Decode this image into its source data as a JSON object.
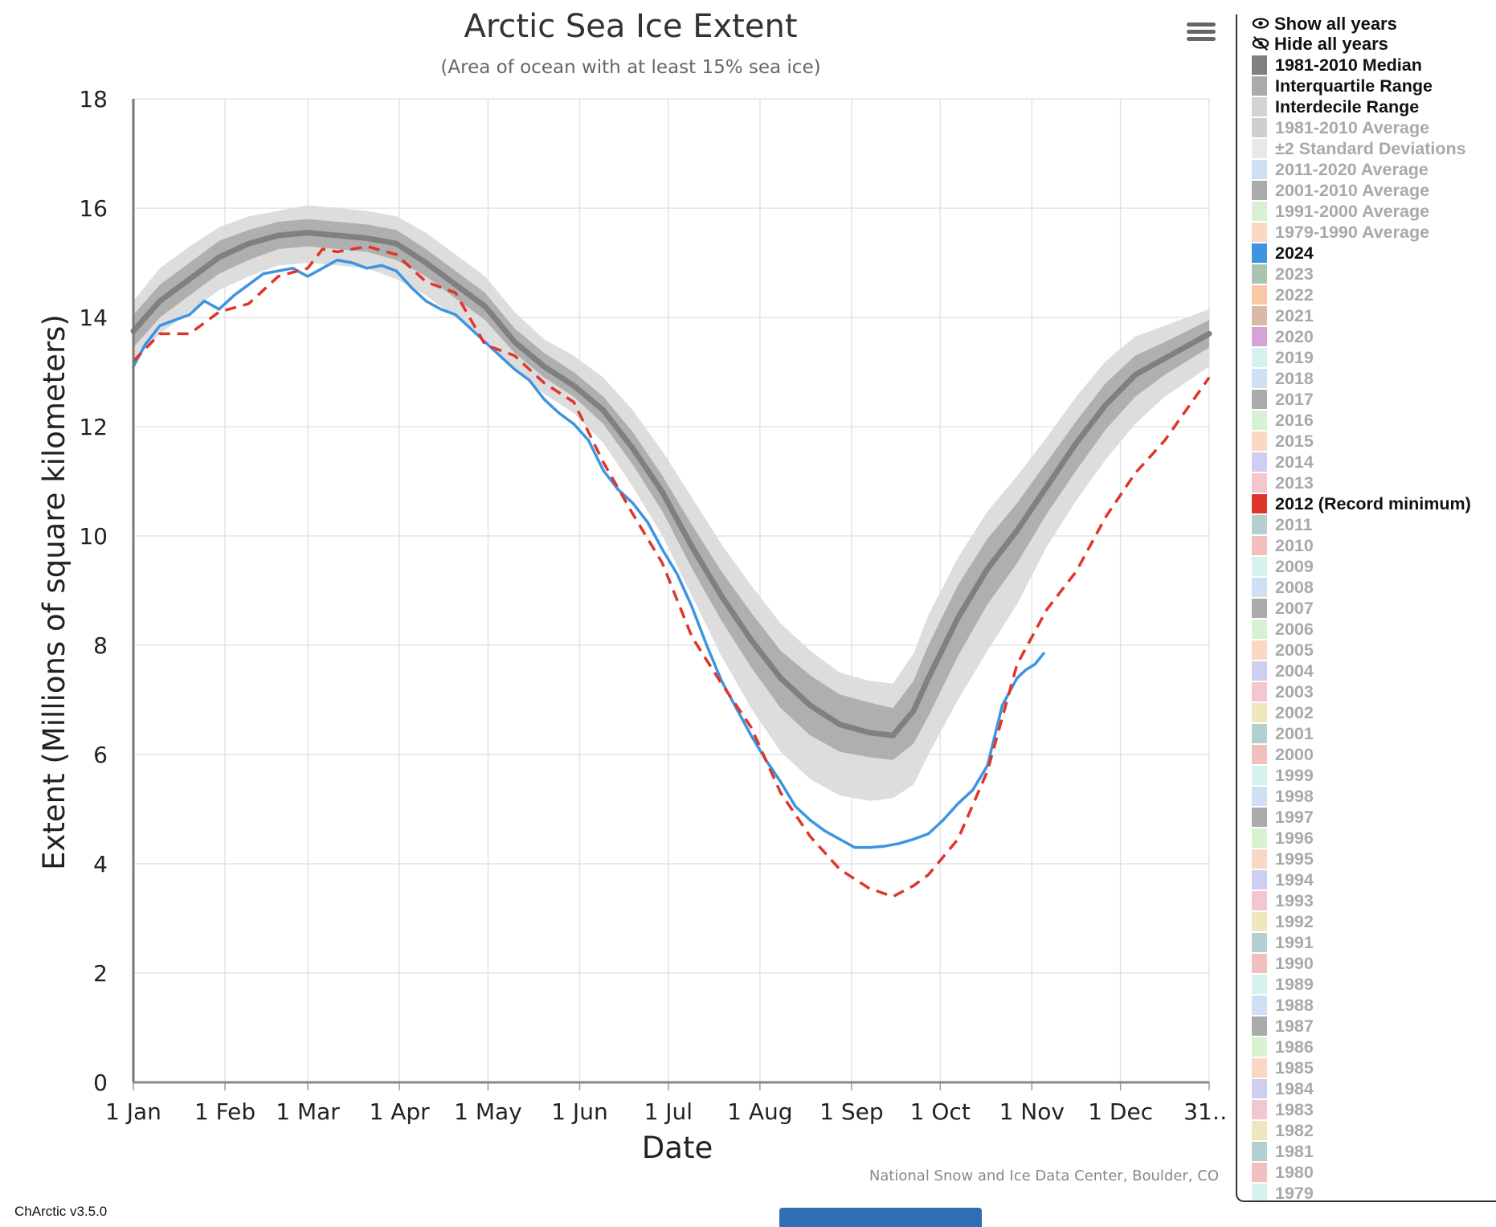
{
  "chart_data": {
    "type": "line",
    "title": "Arctic Sea Ice Extent",
    "subtitle": "(Area of ocean with at least 15% sea ice)",
    "xlabel": "Date",
    "ylabel": "Extent (Millions of square kilometers)",
    "ylim": [
      0,
      18
    ],
    "xlim_day": [
      1,
      365
    ],
    "y_ticks": [
      "0",
      "2",
      "4",
      "6",
      "8",
      "10",
      "12",
      "14",
      "16",
      "18"
    ],
    "x_ticks": [
      {
        "label": "1 Jan",
        "day": 1
      },
      {
        "label": "1 Feb",
        "day": 32
      },
      {
        "label": "1 Mar",
        "day": 60
      },
      {
        "label": "1 Apr",
        "day": 91
      },
      {
        "label": "1 May",
        "day": 121
      },
      {
        "label": "1 Jun",
        "day": 152
      },
      {
        "label": "1 Jul",
        "day": 182
      },
      {
        "label": "1 Aug",
        "day": 213
      },
      {
        "label": "1 Sep",
        "day": 244
      },
      {
        "label": "1 Oct",
        "day": 274
      },
      {
        "label": "1 Nov",
        "day": 305
      },
      {
        "label": "1 Dec",
        "day": 335
      },
      {
        "label": "31…",
        "day": 365
      }
    ],
    "grid": true,
    "legend_position": "right",
    "credits": "National Snow and Ice Data Center, Boulder, CO",
    "series": [
      {
        "name": "1981-2010 Median",
        "color": "#808080",
        "style": "solid-thick",
        "x": [
          1,
          10,
          20,
          30,
          40,
          50,
          60,
          70,
          80,
          90,
          100,
          110,
          120,
          130,
          140,
          150,
          160,
          170,
          180,
          190,
          200,
          210,
          220,
          230,
          240,
          250,
          258,
          265,
          270,
          280,
          290,
          300,
          310,
          320,
          330,
          340,
          350,
          365
        ],
        "y": [
          13.75,
          14.3,
          14.7,
          15.1,
          15.35,
          15.5,
          15.55,
          15.5,
          15.45,
          15.35,
          15.0,
          14.6,
          14.2,
          13.55,
          13.1,
          12.75,
          12.3,
          11.6,
          10.8,
          9.8,
          8.9,
          8.1,
          7.4,
          6.9,
          6.55,
          6.4,
          6.35,
          6.8,
          7.4,
          8.5,
          9.4,
          10.1,
          10.9,
          11.7,
          12.4,
          12.95,
          13.25,
          13.7
        ]
      },
      {
        "name": "Interquartile Range",
        "color": "#aaaaaa",
        "style": "band",
        "x": [
          1,
          10,
          20,
          30,
          40,
          50,
          60,
          70,
          80,
          90,
          100,
          110,
          120,
          130,
          140,
          150,
          160,
          170,
          180,
          190,
          200,
          210,
          220,
          230,
          240,
          250,
          258,
          265,
          270,
          280,
          290,
          300,
          310,
          320,
          330,
          340,
          350,
          365
        ],
        "low": [
          13.45,
          14.0,
          14.4,
          14.8,
          15.05,
          15.25,
          15.3,
          15.25,
          15.2,
          15.05,
          14.75,
          14.35,
          13.95,
          13.35,
          12.9,
          12.55,
          12.05,
          11.3,
          10.45,
          9.4,
          8.45,
          7.6,
          6.85,
          6.35,
          6.05,
          5.95,
          5.9,
          6.2,
          6.7,
          7.8,
          8.75,
          9.5,
          10.4,
          11.2,
          11.95,
          12.55,
          12.95,
          13.45
        ],
        "high": [
          14.05,
          14.6,
          15.0,
          15.4,
          15.6,
          15.75,
          15.8,
          15.75,
          15.7,
          15.6,
          15.25,
          14.85,
          14.45,
          13.8,
          13.35,
          13.0,
          12.55,
          11.9,
          11.1,
          10.2,
          9.35,
          8.6,
          7.9,
          7.45,
          7.1,
          6.95,
          6.85,
          7.35,
          8.0,
          9.1,
          9.95,
          10.6,
          11.35,
          12.1,
          12.8,
          13.3,
          13.55,
          13.95
        ]
      },
      {
        "name": "Interdecile Range",
        "color": "#d9d9d9",
        "style": "band",
        "x": [
          1,
          10,
          20,
          30,
          40,
          50,
          60,
          70,
          80,
          90,
          100,
          110,
          120,
          130,
          140,
          150,
          160,
          170,
          180,
          190,
          200,
          210,
          220,
          230,
          240,
          250,
          258,
          265,
          270,
          280,
          290,
          300,
          310,
          320,
          330,
          340,
          350,
          365
        ],
        "low": [
          13.2,
          13.7,
          14.1,
          14.5,
          14.75,
          14.95,
          15.0,
          14.95,
          14.9,
          14.7,
          14.4,
          14.0,
          13.6,
          13.05,
          12.6,
          12.25,
          11.7,
          10.9,
          10.0,
          8.9,
          7.8,
          6.85,
          6.05,
          5.55,
          5.25,
          5.15,
          5.2,
          5.45,
          6.0,
          7.0,
          7.9,
          8.75,
          9.8,
          10.65,
          11.4,
          12.05,
          12.55,
          13.1
        ],
        "high": [
          14.3,
          14.9,
          15.3,
          15.65,
          15.85,
          15.95,
          16.05,
          16.0,
          15.95,
          15.85,
          15.55,
          15.15,
          14.75,
          14.1,
          13.6,
          13.3,
          12.9,
          12.3,
          11.55,
          10.7,
          9.85,
          9.1,
          8.4,
          7.9,
          7.5,
          7.35,
          7.3,
          7.85,
          8.55,
          9.6,
          10.45,
          11.1,
          11.8,
          12.55,
          13.2,
          13.65,
          13.85,
          14.15
        ]
      },
      {
        "name": "2024",
        "color": "#3d94e1",
        "style": "solid",
        "x": [
          1,
          5,
          10,
          15,
          20,
          25,
          30,
          35,
          40,
          45,
          50,
          55,
          60,
          65,
          70,
          75,
          80,
          85,
          90,
          95,
          100,
          105,
          110,
          115,
          120,
          125,
          130,
          135,
          140,
          145,
          150,
          155,
          160,
          165,
          170,
          175,
          180,
          185,
          190,
          195,
          200,
          205,
          210,
          215,
          220,
          225,
          230,
          235,
          240,
          245,
          250,
          255,
          260,
          265,
          270,
          275,
          280,
          285,
          290,
          295,
          300,
          303,
          306,
          309
        ],
        "y": [
          13.1,
          13.5,
          13.85,
          13.95,
          14.05,
          14.3,
          14.15,
          14.4,
          14.6,
          14.8,
          14.85,
          14.9,
          14.75,
          14.9,
          15.05,
          15.0,
          14.9,
          14.95,
          14.85,
          14.55,
          14.3,
          14.15,
          14.05,
          13.8,
          13.55,
          13.3,
          13.05,
          12.85,
          12.5,
          12.25,
          12.05,
          11.75,
          11.2,
          10.85,
          10.6,
          10.25,
          9.75,
          9.3,
          8.7,
          8.0,
          7.35,
          6.85,
          6.35,
          5.9,
          5.5,
          5.05,
          4.8,
          4.6,
          4.45,
          4.3,
          4.3,
          4.32,
          4.37,
          4.45,
          4.55,
          4.8,
          5.1,
          5.35,
          5.8,
          6.9,
          7.4,
          7.55,
          7.65,
          7.85
        ]
      },
      {
        "name": "2012 (Record minimum)",
        "color": "#e0352b",
        "style": "dashed",
        "x": [
          1,
          10,
          20,
          30,
          40,
          50,
          60,
          65,
          70,
          80,
          90,
          100,
          110,
          120,
          130,
          140,
          150,
          160,
          170,
          180,
          190,
          200,
          210,
          220,
          230,
          240,
          250,
          258,
          265,
          270,
          280,
          290,
          300,
          310,
          320,
          330,
          340,
          350,
          365
        ],
        "y": [
          13.2,
          13.7,
          13.7,
          14.1,
          14.25,
          14.75,
          14.9,
          15.25,
          15.2,
          15.3,
          15.15,
          14.65,
          14.45,
          13.5,
          13.3,
          12.8,
          12.45,
          11.35,
          10.4,
          9.5,
          8.15,
          7.3,
          6.5,
          5.3,
          4.5,
          3.9,
          3.55,
          3.4,
          3.6,
          3.8,
          4.45,
          5.7,
          7.65,
          8.65,
          9.35,
          10.35,
          11.15,
          11.75,
          12.9
        ]
      }
    ]
  },
  "menu_icon": "hamburger-menu-icon",
  "legend": {
    "show_all_label": "Show all years",
    "hide_all_label": "Hide all years",
    "items": [
      {
        "label": "1981-2010 Median",
        "color": "#808080",
        "active": true
      },
      {
        "label": "Interquartile Range",
        "color": "#aaaaaa",
        "active": true
      },
      {
        "label": "Interdecile Range",
        "color": "#d3d3d3",
        "active": true
      },
      {
        "label": "1981-2010 Average",
        "color": "#cfcfcf",
        "active": false
      },
      {
        "label": "±2 Standard Deviations",
        "color": "#e8e8e8",
        "active": false
      },
      {
        "label": "2011-2020 Average",
        "color": "#cfe0f5",
        "active": false
      },
      {
        "label": "2001-2010 Average",
        "color": "#ababab",
        "active": false
      },
      {
        "label": "1991-2000 Average",
        "color": "#d6f2d0",
        "active": false
      },
      {
        "label": "1979-1990 Average",
        "color": "#f9d7c3",
        "active": false
      },
      {
        "label": "2024",
        "color": "#3d94e1",
        "active": true
      },
      {
        "label": "2023",
        "color": "#a8c4b2",
        "active": false
      },
      {
        "label": "2022",
        "color": "#f8c8a6",
        "active": false
      },
      {
        "label": "2021",
        "color": "#d9b9a8",
        "active": false
      },
      {
        "label": "2020",
        "color": "#d6a3d6",
        "active": false
      },
      {
        "label": "2019",
        "color": "#d5f2ee",
        "active": false
      },
      {
        "label": "2018",
        "color": "#cfe0f5",
        "active": false
      },
      {
        "label": "2017",
        "color": "#ababab",
        "active": false
      },
      {
        "label": "2016",
        "color": "#d6f2d0",
        "active": false
      },
      {
        "label": "2015",
        "color": "#f9d7c3",
        "active": false
      },
      {
        "label": "2014",
        "color": "#cfcdf0",
        "active": false
      },
      {
        "label": "2013",
        "color": "#f4c6cf",
        "active": false
      },
      {
        "label": "2012 (Record minimum)",
        "color": "#e0352b",
        "active": true
      },
      {
        "label": "2011",
        "color": "#b3cfcf",
        "active": false
      },
      {
        "label": "2010",
        "color": "#f2bfbf",
        "active": false
      },
      {
        "label": "2009",
        "color": "#d5f2ee",
        "active": false
      },
      {
        "label": "2008",
        "color": "#cfe0f5",
        "active": false
      },
      {
        "label": "2007",
        "color": "#ababab",
        "active": false
      },
      {
        "label": "2006",
        "color": "#d6f2d0",
        "active": false
      },
      {
        "label": "2005",
        "color": "#f9d7c3",
        "active": false
      },
      {
        "label": "2004",
        "color": "#cfcdf0",
        "active": false
      },
      {
        "label": "2003",
        "color": "#f4c6cf",
        "active": false
      },
      {
        "label": "2002",
        "color": "#f0e6bd",
        "active": false
      },
      {
        "label": "2001",
        "color": "#b3cfcf",
        "active": false
      },
      {
        "label": "2000",
        "color": "#f2bfbf",
        "active": false
      },
      {
        "label": "1999",
        "color": "#d5f2ee",
        "active": false
      },
      {
        "label": "1998",
        "color": "#cfe0f5",
        "active": false
      },
      {
        "label": "1997",
        "color": "#ababab",
        "active": false
      },
      {
        "label": "1996",
        "color": "#d6f2d0",
        "active": false
      },
      {
        "label": "1995",
        "color": "#f9d7c3",
        "active": false
      },
      {
        "label": "1994",
        "color": "#cfcdf0",
        "active": false
      },
      {
        "label": "1993",
        "color": "#f4c6cf",
        "active": false
      },
      {
        "label": "1992",
        "color": "#f0e6bd",
        "active": false
      },
      {
        "label": "1991",
        "color": "#b3cfcf",
        "active": false
      },
      {
        "label": "1990",
        "color": "#f2bfbf",
        "active": false
      },
      {
        "label": "1989",
        "color": "#d5f2ee",
        "active": false
      },
      {
        "label": "1988",
        "color": "#cfe0f5",
        "active": false
      },
      {
        "label": "1987",
        "color": "#ababab",
        "active": false
      },
      {
        "label": "1986",
        "color": "#d6f2d0",
        "active": false
      },
      {
        "label": "1985",
        "color": "#f9d7c3",
        "active": false
      },
      {
        "label": "1984",
        "color": "#cfcdf0",
        "active": false
      },
      {
        "label": "1983",
        "color": "#f4c6cf",
        "active": false
      },
      {
        "label": "1982",
        "color": "#f0e6bd",
        "active": false
      },
      {
        "label": "1981",
        "color": "#b3cfcf",
        "active": false
      },
      {
        "label": "1980",
        "color": "#f2bfbf",
        "active": false
      },
      {
        "label": "1979",
        "color": "#d5f2ee",
        "active": false
      }
    ]
  },
  "footer": {
    "version": "ChArctic v3.5.0"
  }
}
